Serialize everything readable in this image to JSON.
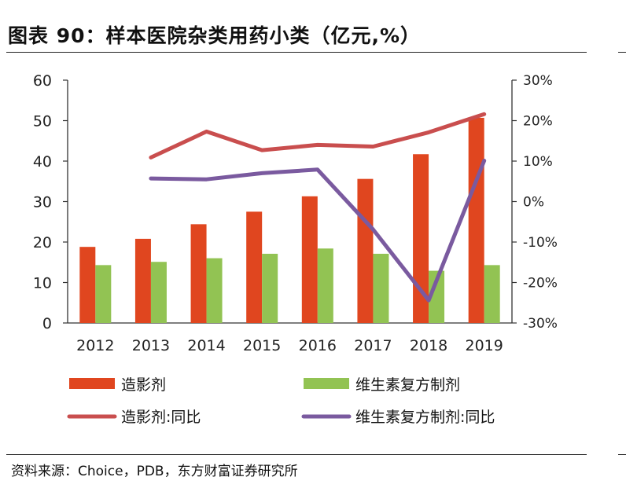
{
  "title": "图表 90：样本医院杂类用药小类（亿元,%）",
  "source": "资料来源：Choice，PDB，东方财富证券研究所",
  "chart_data": {
    "type": "bar",
    "categories": [
      "2012",
      "2013",
      "2014",
      "2015",
      "2016",
      "2017",
      "2018",
      "2019"
    ],
    "series": [
      {
        "name": "造影剂",
        "kind": "bar",
        "axis": "left",
        "color": "#e0461f",
        "values": [
          18.8,
          20.8,
          24.4,
          27.5,
          31.3,
          35.6,
          41.7,
          50.7
        ]
      },
      {
        "name": "维生素复方制剂",
        "kind": "bar",
        "axis": "left",
        "color": "#92c353",
        "values": [
          14.3,
          15.1,
          16.0,
          17.1,
          18.4,
          17.1,
          12.9,
          14.3
        ]
      },
      {
        "name": "造影剂:同比",
        "kind": "line",
        "axis": "right",
        "color": "#c94e4e",
        "values": [
          null,
          10.9,
          17.3,
          12.7,
          14.0,
          13.6,
          17.1,
          21.6
        ]
      },
      {
        "name": "维生素复方制剂:同比",
        "kind": "line",
        "axis": "right",
        "color": "#7a5a9f",
        "values": [
          null,
          5.7,
          5.5,
          7.0,
          7.9,
          -6.9,
          -24.4,
          10.1
        ]
      }
    ],
    "y_left": {
      "min": 0,
      "max": 60,
      "ticks": [
        "0",
        "10",
        "20",
        "30",
        "40",
        "50",
        "60"
      ]
    },
    "y_right": {
      "min": -30,
      "max": 30,
      "ticks": [
        "-30%",
        "-20%",
        "-10%",
        "0%",
        "10%",
        "20%",
        "30%"
      ]
    },
    "grid": false,
    "legend": "bottom"
  }
}
